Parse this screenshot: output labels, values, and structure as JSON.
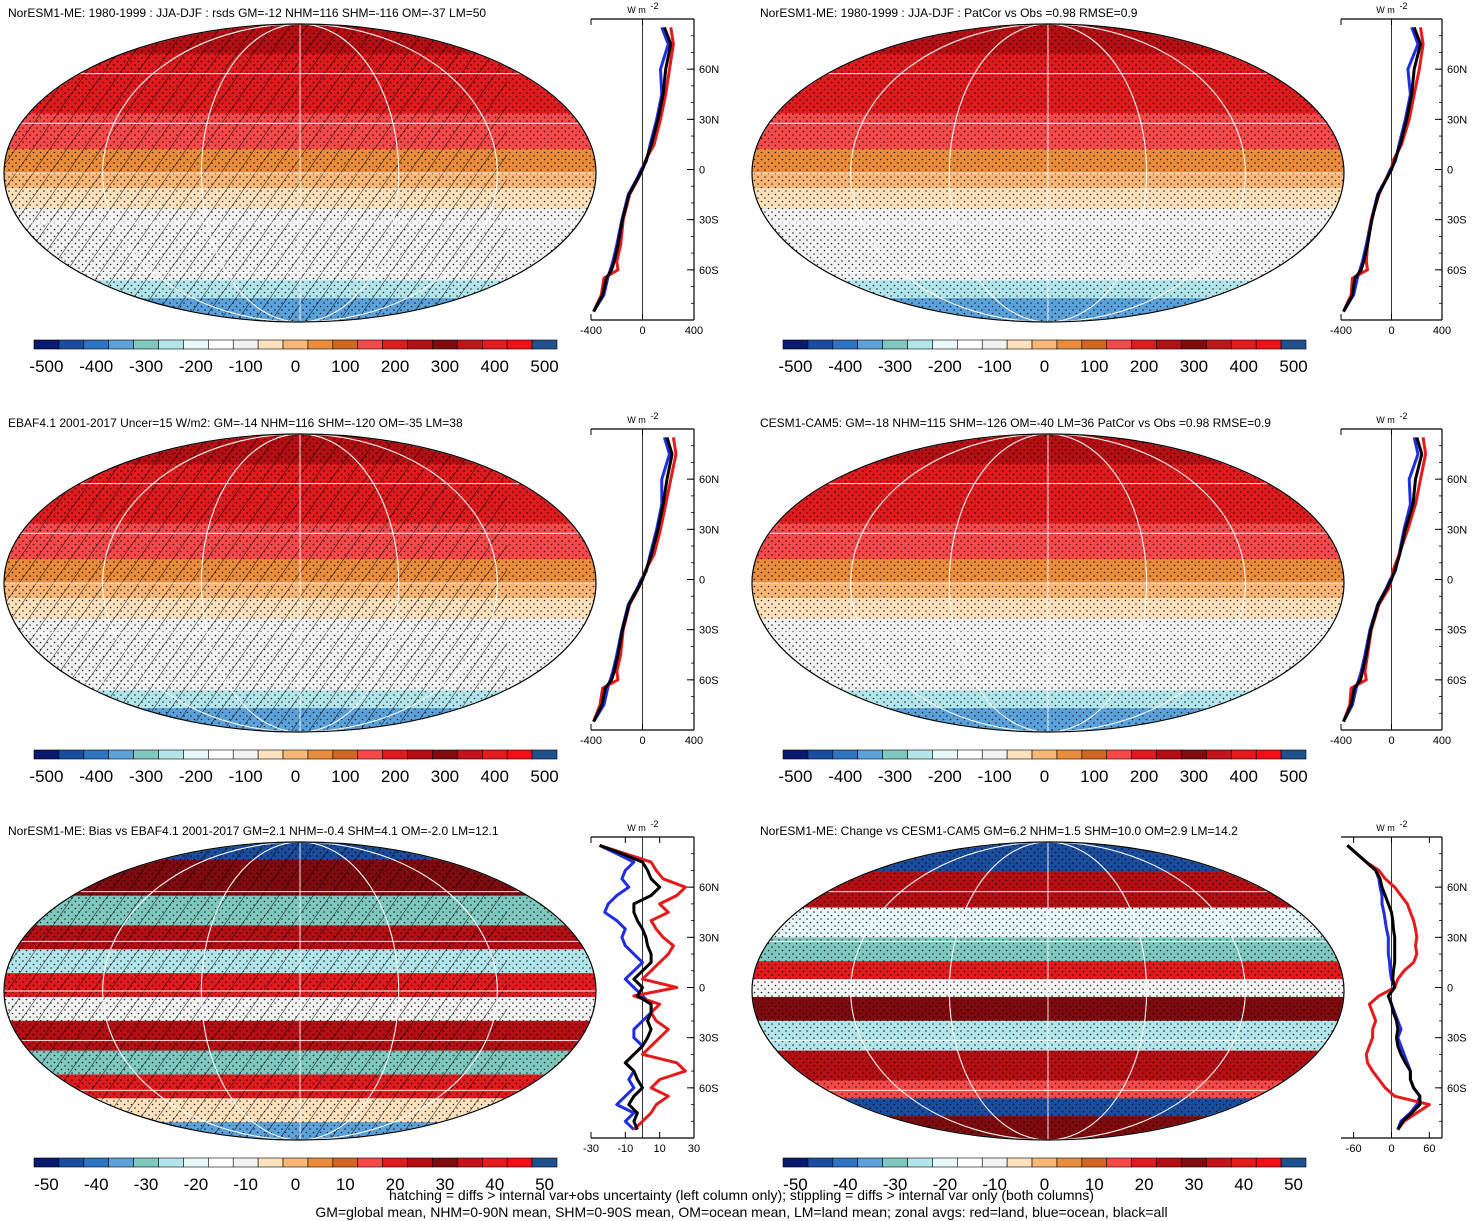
{
  "colorbar_colors": [
    "#0a1a6e",
    "#1a4d9e",
    "#2f74c2",
    "#5ba2da",
    "#7ec8c0",
    "#b2e6ea",
    "#e8f7f8",
    "#ffffff",
    "#f2f2f2",
    "#fde1bd",
    "#f8b777",
    "#e98c3c",
    "#d0661f",
    "#f7484a",
    "#e01b1e",
    "#b50f14",
    "#800b0e",
    "#c3141a",
    "#e41a1c",
    "#f20f16",
    "#21508e"
  ],
  "colors": {
    "land": "#e41a1c",
    "ocean": "#1f2de6",
    "all": "#000000"
  },
  "footer": {
    "line1": "hatching = diffs > internal var+obs uncertainty (left column only); stippling = diffs > internal var only (both columns)",
    "line2": "GM=global mean, NHM=0-90N mean, SHM=0-90S mean, OM=ocean mean, LM=land mean; zonal avgs: red=land, blue=ocean, black=all"
  },
  "chart_data": [
    {
      "type": "heatmap",
      "title": "NorESM1-ME: 1980-1999 : JJA-DJF : rsds GM=-12 NHM=116 SHM=-116 OM=-37 LM=50",
      "colorbar_labels": [
        "-500",
        "-400",
        "-300",
        "-200",
        "-100",
        "0",
        "100",
        "200",
        "300",
        "400",
        "500"
      ],
      "colorbar_range": [
        -500,
        500
      ],
      "pattern": "seasonal",
      "hatching": true,
      "zonal_mean": {
        "unit": "W m",
        "unit_superscript": "-2",
        "xlim": [
          -400,
          400
        ],
        "x_ticks": [
          "-400",
          "0",
          "400"
        ],
        "y_ticks": [
          "60N",
          "30N",
          "0",
          "30S",
          "60S"
        ],
        "lat": [
          85,
          75,
          60,
          45,
          30,
          15,
          5,
          0,
          -5,
          -15,
          -30,
          -45,
          -55,
          -60,
          -65,
          -75,
          -85
        ],
        "land": [
          220,
          240,
          210,
          180,
          140,
          90,
          20,
          0,
          -30,
          -100,
          -150,
          -170,
          -200,
          -190,
          -300,
          -320,
          -380
        ],
        "ocean": [
          150,
          200,
          140,
          150,
          110,
          60,
          30,
          -10,
          -40,
          -110,
          -160,
          -200,
          -230,
          -250,
          -270,
          -300,
          -380
        ],
        "all": [
          170,
          220,
          180,
          160,
          120,
          70,
          25,
          0,
          -35,
          -105,
          -155,
          -190,
          -220,
          -240,
          -280,
          -310,
          -380
        ]
      }
    },
    {
      "type": "heatmap",
      "title": "NorESM1-ME: 1980-1999 : JJA-DJF : PatCor vs Obs =0.98 RMSE=0.9",
      "colorbar_labels": [
        "-500",
        "-400",
        "-300",
        "-200",
        "-100",
        "0",
        "100",
        "200",
        "300",
        "400",
        "500"
      ],
      "colorbar_range": [
        -500,
        500
      ],
      "pattern": "seasonal",
      "hatching": false,
      "zonal_mean": {
        "unit": "W m",
        "unit_superscript": "-2",
        "xlim": [
          -400,
          400
        ],
        "x_ticks": [
          "-400",
          "0",
          "400"
        ],
        "y_ticks": [
          "60N",
          "30N",
          "0",
          "30S",
          "60S"
        ],
        "lat": [
          85,
          75,
          60,
          45,
          30,
          15,
          5,
          0,
          -5,
          -15,
          -30,
          -45,
          -55,
          -60,
          -65,
          -75,
          -85
        ],
        "land": [
          230,
          250,
          220,
          180,
          140,
          80,
          10,
          0,
          -40,
          -100,
          -160,
          -190,
          -200,
          -190,
          -310,
          -320,
          -380
        ],
        "ocean": [
          160,
          210,
          130,
          150,
          110,
          60,
          30,
          -10,
          -40,
          -110,
          -160,
          -200,
          -230,
          -250,
          -270,
          -300,
          -380
        ],
        "all": [
          180,
          230,
          180,
          160,
          120,
          70,
          25,
          0,
          -35,
          -105,
          -155,
          -190,
          -220,
          -240,
          -290,
          -310,
          -380
        ]
      }
    },
    {
      "type": "heatmap",
      "title": "EBAF4.1 2001-2017 Uncer=15 W/m2: GM=-14 NHM=116 SHM=-120 OM=-35 LM=38",
      "colorbar_labels": [
        "-500",
        "-400",
        "-300",
        "-200",
        "-100",
        "0",
        "100",
        "200",
        "300",
        "400",
        "500"
      ],
      "colorbar_range": [
        -500,
        500
      ],
      "pattern": "seasonal",
      "hatching": true,
      "zonal_mean": {
        "unit": "W m",
        "unit_superscript": "-2",
        "xlim": [
          -400,
          400
        ],
        "x_ticks": [
          "-400",
          "0",
          "400"
        ],
        "y_ticks": [
          "60N",
          "30N",
          "0",
          "30S",
          "60S"
        ],
        "lat": [
          85,
          75,
          60,
          45,
          30,
          15,
          5,
          0,
          -5,
          -15,
          -30,
          -45,
          -55,
          -60,
          -65,
          -75,
          -85
        ],
        "land": [
          240,
          260,
          220,
          180,
          140,
          90,
          20,
          0,
          -30,
          -100,
          -150,
          -170,
          -200,
          -190,
          -310,
          -330,
          -380
        ],
        "ocean": [
          170,
          210,
          150,
          150,
          110,
          60,
          30,
          -10,
          -40,
          -110,
          -160,
          -200,
          -230,
          -250,
          -270,
          -300,
          -380
        ],
        "all": [
          190,
          230,
          190,
          160,
          120,
          70,
          25,
          0,
          -35,
          -105,
          -155,
          -190,
          -220,
          -240,
          -290,
          -315,
          -380
        ]
      }
    },
    {
      "type": "heatmap",
      "title": "CESM1-CAM5: GM=-18 NHM=115 SHM=-126 OM=-40 LM=36 PatCor vs Obs =0.98 RMSE=0.9",
      "colorbar_labels": [
        "-500",
        "-400",
        "-300",
        "-200",
        "-100",
        "0",
        "100",
        "200",
        "300",
        "400",
        "500"
      ],
      "colorbar_range": [
        -500,
        500
      ],
      "pattern": "seasonal",
      "hatching": false,
      "zonal_mean": {
        "unit": "W m",
        "unit_superscript": "-2",
        "xlim": [
          -400,
          400
        ],
        "x_ticks": [
          "-400",
          "0",
          "400"
        ],
        "y_ticks": [
          "60N",
          "30N",
          "0",
          "30S",
          "60S"
        ],
        "lat": [
          85,
          75,
          60,
          45,
          30,
          15,
          5,
          0,
          -5,
          -15,
          -30,
          -45,
          -55,
          -60,
          -65,
          -75,
          -85
        ],
        "land": [
          250,
          270,
          230,
          190,
          130,
          60,
          10,
          0,
          -20,
          -100,
          -160,
          -190,
          -210,
          -200,
          -320,
          -330,
          -380
        ],
        "ocean": [
          180,
          210,
          140,
          150,
          100,
          60,
          30,
          -10,
          -40,
          -110,
          -170,
          -210,
          -240,
          -260,
          -280,
          -310,
          -380
        ],
        "all": [
          200,
          240,
          190,
          170,
          110,
          65,
          25,
          0,
          -35,
          -105,
          -165,
          -200,
          -230,
          -245,
          -295,
          -320,
          -380
        ]
      }
    },
    {
      "type": "heatmap",
      "title": "NorESM1-ME: Bias vs EBAF4.1 2001-2017 GM=2.1 NHM=-0.4 SHM=4.1 OM=-2.0 LM=12.1",
      "colorbar_labels": [
        "-50",
        "-40",
        "-30",
        "-20",
        "-10",
        "0",
        "10",
        "20",
        "30",
        "40",
        "50"
      ],
      "colorbar_range": [
        -50,
        50
      ],
      "pattern": "bias",
      "hatching": true,
      "zonal_mean": {
        "unit": "W m",
        "unit_superscript": "-2",
        "xlim": [
          -30,
          30
        ],
        "x_ticks": [
          "-30",
          "-10",
          "10",
          "30"
        ],
        "y_ticks": [
          "60N",
          "30N",
          "0",
          "30S",
          "60S"
        ],
        "lat": [
          85,
          80,
          75,
          70,
          65,
          60,
          55,
          50,
          45,
          40,
          35,
          30,
          25,
          20,
          15,
          10,
          5,
          0,
          -5,
          -10,
          -15,
          -20,
          -25,
          -30,
          -35,
          -40,
          -45,
          -50,
          -55,
          -60,
          -65,
          -70,
          -75,
          -80,
          -85
        ],
        "land": [
          -25,
          -10,
          5,
          8,
          12,
          25,
          20,
          10,
          15,
          5,
          8,
          12,
          18,
          15,
          10,
          5,
          0,
          20,
          -5,
          10,
          5,
          8,
          15,
          10,
          5,
          0,
          20,
          25,
          10,
          5,
          15,
          8,
          5,
          0,
          -5
        ],
        "ocean": [
          -25,
          -15,
          -5,
          -10,
          -12,
          -8,
          -15,
          -20,
          -22,
          -15,
          -10,
          -12,
          -10,
          -5,
          0,
          -5,
          -10,
          -5,
          0,
          5,
          5,
          0,
          -5,
          -5,
          0,
          -5,
          -10,
          -5,
          -8,
          -5,
          -10,
          -15,
          -5,
          -10,
          -5
        ],
        "all": [
          -25,
          -12,
          0,
          3,
          5,
          10,
          5,
          -5,
          -5,
          -3,
          0,
          2,
          3,
          5,
          5,
          0,
          -5,
          0,
          -3,
          5,
          5,
          3,
          5,
          3,
          0,
          -5,
          -10,
          -5,
          -3,
          0,
          -5,
          -8,
          -3,
          -5,
          -3
        ]
      }
    },
    {
      "type": "heatmap",
      "title": "NorESM1-ME: Change vs CESM1-CAM5 GM=6.2 NHM=1.5 SHM=10.0 OM=2.9 LM=14.2",
      "colorbar_labels": [
        "-50",
        "-40",
        "-30",
        "-20",
        "-10",
        "0",
        "10",
        "20",
        "30",
        "40",
        "50"
      ],
      "colorbar_range": [
        -50,
        50
      ],
      "pattern": "change",
      "hatching": false,
      "zonal_mean": {
        "unit": "W m",
        "unit_superscript": "-2",
        "xlim": [
          -80,
          80
        ],
        "x_ticks": [
          "-60",
          "0",
          "60"
        ],
        "y_ticks": [
          "60N",
          "30N",
          "0",
          "30S",
          "60S"
        ],
        "lat": [
          85,
          80,
          75,
          70,
          65,
          60,
          55,
          50,
          45,
          40,
          35,
          30,
          25,
          20,
          15,
          10,
          5,
          0,
          -5,
          -10,
          -15,
          -20,
          -25,
          -30,
          -35,
          -40,
          -45,
          -50,
          -55,
          -60,
          -65,
          -70,
          -75,
          -80,
          -85
        ],
        "land": [
          -70,
          -55,
          -40,
          -20,
          -10,
          5,
          15,
          25,
          30,
          35,
          38,
          40,
          38,
          40,
          35,
          20,
          10,
          5,
          -20,
          -35,
          -30,
          -25,
          -30,
          -30,
          -35,
          -40,
          -38,
          -30,
          -20,
          -10,
          5,
          60,
          40,
          20,
          10
        ],
        "ocean": [
          -70,
          -55,
          -40,
          -25,
          -20,
          -18,
          -15,
          -15,
          -12,
          -10,
          -8,
          -5,
          -5,
          -5,
          -3,
          -2,
          0,
          5,
          -5,
          0,
          5,
          10,
          15,
          10,
          15,
          20,
          25,
          30,
          30,
          35,
          45,
          40,
          30,
          15,
          10
        ],
        "all": [
          -70,
          -55,
          -40,
          -25,
          -18,
          -15,
          -10,
          -5,
          0,
          2,
          3,
          5,
          5,
          5,
          5,
          3,
          2,
          5,
          -5,
          0,
          3,
          8,
          10,
          8,
          10,
          15,
          22,
          30,
          30,
          35,
          45,
          45,
          32,
          18,
          10
        ]
      }
    }
  ]
}
